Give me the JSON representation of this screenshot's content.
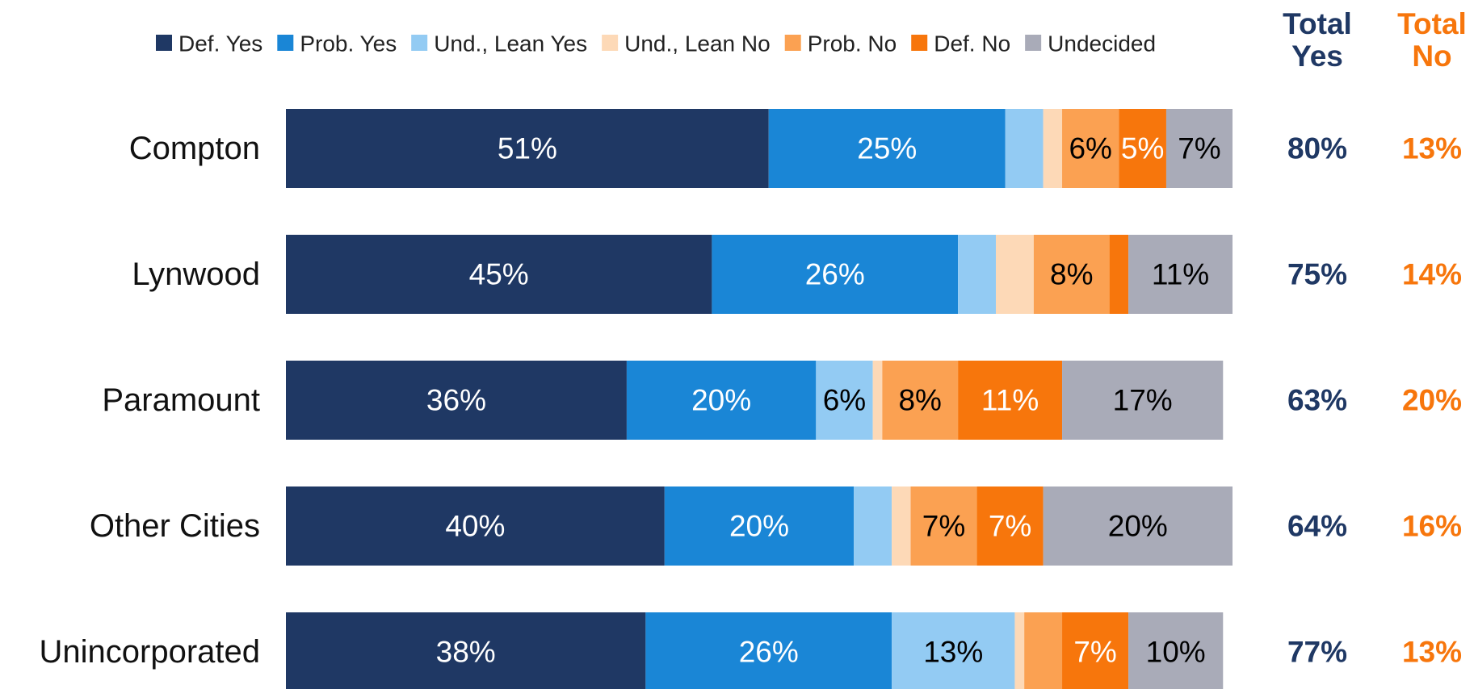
{
  "chart_data": {
    "type": "stacked-bar-horizontal",
    "categories": [
      "Compton",
      "Lynwood",
      "Paramount",
      "Other Cities",
      "Unincorporated"
    ],
    "xlim": [
      0,
      100
    ],
    "series": [
      {
        "name": "Def. Yes",
        "color": "#1f3864",
        "label_color": "#ffffff",
        "values": [
          51,
          45,
          36,
          40,
          38
        ],
        "value_labels": [
          "51%",
          "45%",
          "36%",
          "40%",
          "38%"
        ]
      },
      {
        "name": "Prob. Yes",
        "color": "#1a86d6",
        "label_color": "#ffffff",
        "values": [
          25,
          26,
          20,
          20,
          26
        ],
        "value_labels": [
          "25%",
          "26%",
          "20%",
          "20%",
          "26%"
        ]
      },
      {
        "name": "Und., Lean Yes",
        "color": "#93cbf3",
        "label_color": "#000000",
        "values": [
          4,
          4,
          6,
          4,
          13
        ],
        "value_labels": [
          null,
          null,
          "6%",
          null,
          "13%"
        ]
      },
      {
        "name": "Und., Lean No",
        "color": "#fdd9b7",
        "label_color": "#000000",
        "values": [
          2,
          4,
          1,
          2,
          1
        ],
        "value_labels": [
          null,
          null,
          null,
          null,
          null
        ]
      },
      {
        "name": "Prob. No",
        "color": "#fba152",
        "label_color": "#000000",
        "values": [
          6,
          8,
          8,
          7,
          4
        ],
        "value_labels": [
          "6%",
          "8%",
          "8%",
          "7%",
          null
        ]
      },
      {
        "name": "Def. No",
        "color": "#f7760c",
        "label_color": "#ffffff",
        "values": [
          5,
          2,
          11,
          7,
          7
        ],
        "value_labels": [
          "5%",
          null,
          "11%",
          "7%",
          "7%"
        ]
      },
      {
        "name": "Undecided",
        "color": "#a9abb8",
        "label_color": "#000000",
        "values": [
          7,
          11,
          17,
          20,
          10
        ],
        "value_labels": [
          "7%",
          "11%",
          "17%",
          "20%",
          "10%"
        ]
      }
    ],
    "totals": [
      {
        "name": "Total Yes",
        "color": "#1f3864",
        "values": [
          80,
          75,
          63,
          64,
          77
        ],
        "value_labels": [
          "80%",
          "75%",
          "63%",
          "64%",
          "77%"
        ]
      },
      {
        "name": "Total No",
        "color": "#f7760c",
        "values": [
          13,
          14,
          20,
          16,
          13
        ],
        "value_labels": [
          "13%",
          "14%",
          "20%",
          "16%",
          "13%"
        ]
      }
    ]
  }
}
